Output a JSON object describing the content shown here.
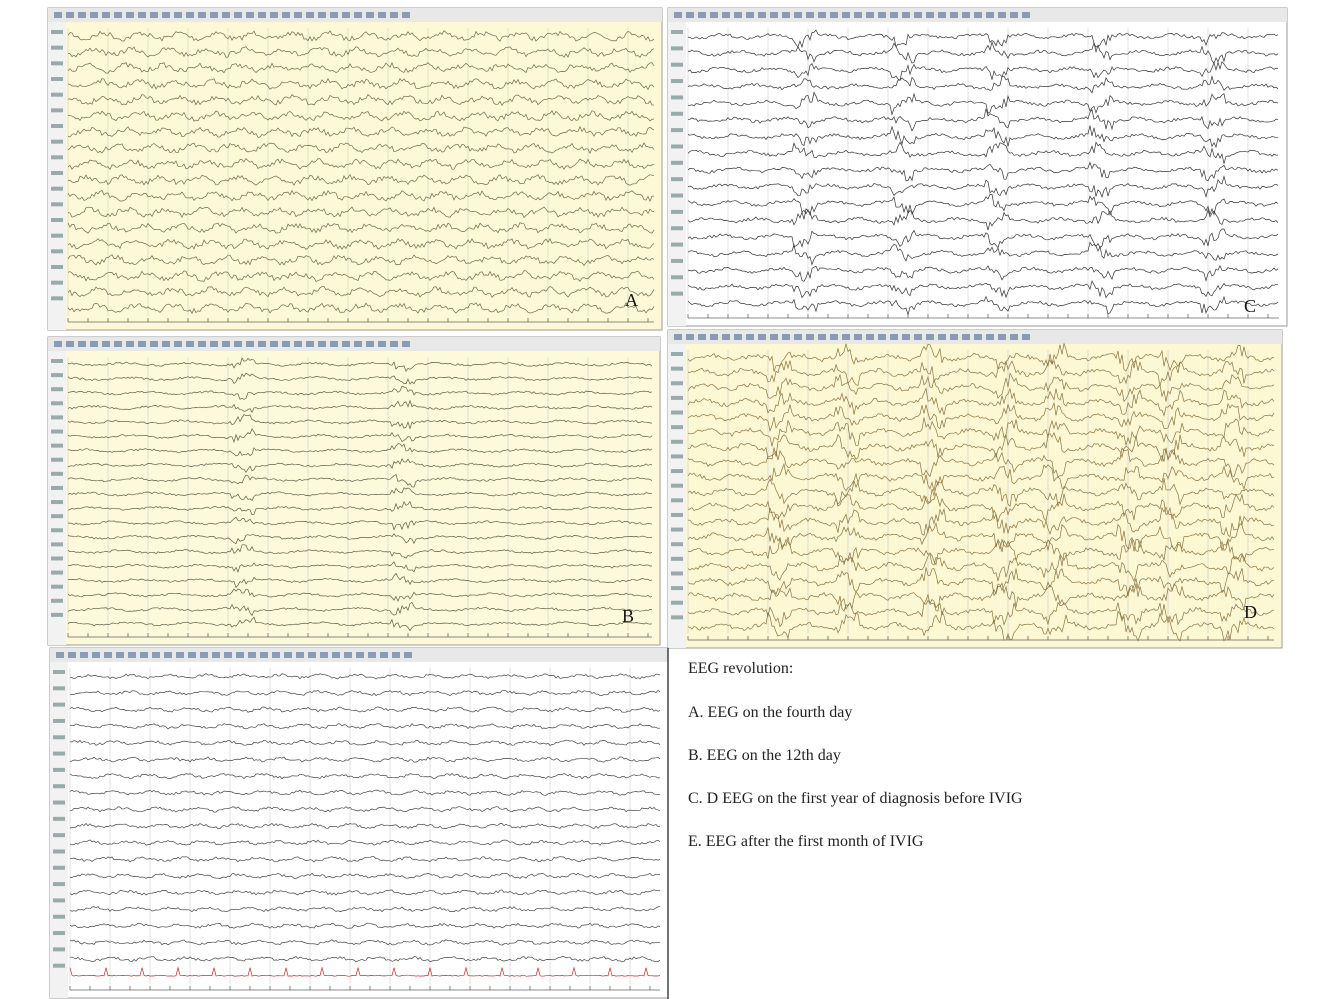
{
  "panels": [
    {
      "label": "A"
    },
    {
      "label": "B"
    },
    {
      "label": "C"
    },
    {
      "label": "D"
    }
  ],
  "caption": {
    "title": "EEG revolution:",
    "items": [
      "A. EEG on the fourth day",
      "B. EEG on the 12th day",
      "C. D EEG on the first year of diagnosis before IVIG",
      "E. EEG after the first month of IVIG"
    ]
  }
}
